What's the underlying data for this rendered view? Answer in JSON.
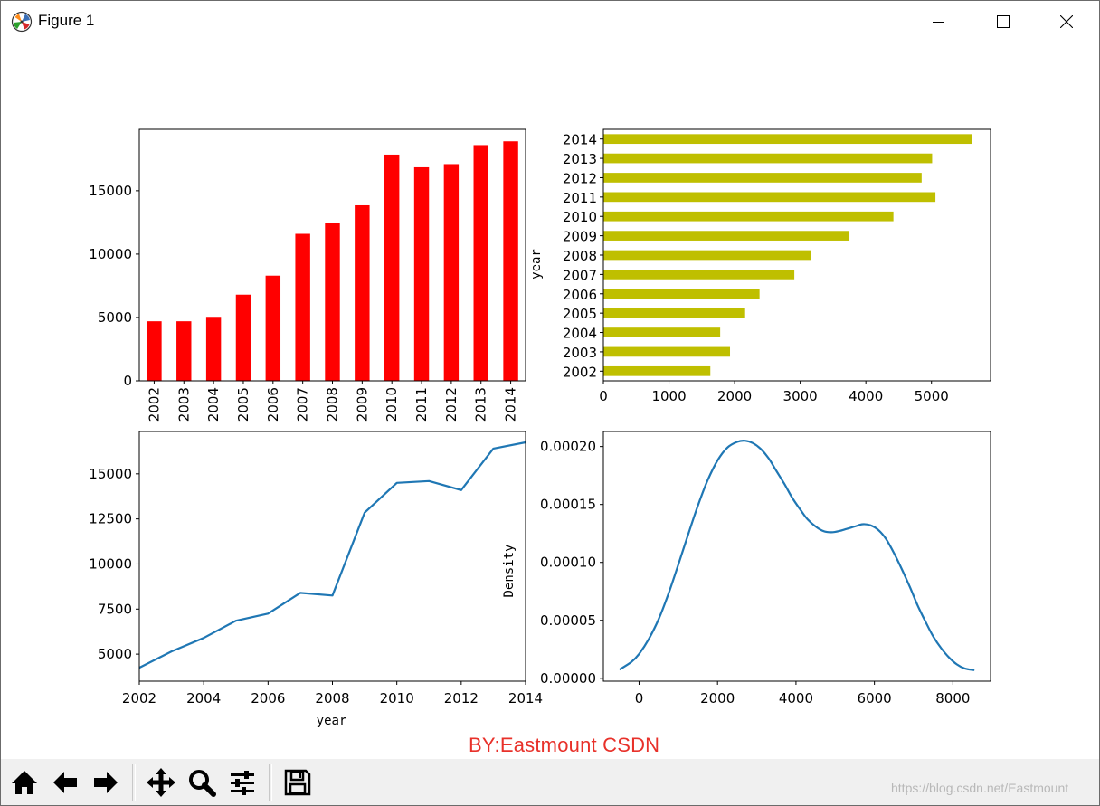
{
  "window": {
    "title": "Figure 1",
    "buttons": {
      "minimize": "minimize",
      "maximize": "maximize",
      "close": "close"
    }
  },
  "watermark": {
    "main": "BY:Eastmount CSDN",
    "url": "https://blog.csdn.net/Eastmount"
  },
  "toolbar": {
    "icons": [
      "home-icon",
      "back-arrow-icon",
      "forward-arrow-icon",
      "pan-icon",
      "zoom-icon",
      "configure-subplots-icon",
      "save-icon"
    ]
  },
  "colors": {
    "bar_red": "#ff0000",
    "bar_olive": "#bfbf00",
    "line_blue": "#1f77b4",
    "axis": "#000000"
  },
  "chart_data": [
    {
      "type": "bar",
      "categories": [
        "2002",
        "2003",
        "2004",
        "2005",
        "2006",
        "2007",
        "2008",
        "2009",
        "2010",
        "2011",
        "2012",
        "2013",
        "2014"
      ],
      "values": [
        4700,
        4700,
        5050,
        6800,
        8300,
        11600,
        12450,
        13850,
        17850,
        16850,
        17100,
        18600,
        18900
      ],
      "ylim": [
        0,
        19845
      ],
      "yticks": [
        0,
        5000,
        10000,
        15000
      ],
      "ytick_labels": [
        "0",
        "5000",
        "10000",
        "15000"
      ],
      "xlabel": "",
      "ylabel": "",
      "title": ""
    },
    {
      "type": "bar",
      "orientation": "horizontal",
      "categories": [
        "2002",
        "2003",
        "2004",
        "2005",
        "2006",
        "2007",
        "2008",
        "2009",
        "2010",
        "2011",
        "2012",
        "2013",
        "2014"
      ],
      "values": [
        1630,
        1930,
        1780,
        2160,
        2380,
        2910,
        3160,
        3750,
        4420,
        5060,
        4850,
        5010,
        5620
      ],
      "xlim": [
        0,
        5900
      ],
      "xticks": [
        0,
        1000,
        2000,
        3000,
        4000,
        5000
      ],
      "xtick_labels": [
        "0",
        "1000",
        "2000",
        "3000",
        "4000",
        "5000"
      ],
      "ylabel": "year",
      "xlabel": "",
      "title": ""
    },
    {
      "type": "line",
      "x": [
        2002,
        2003,
        2004,
        2005,
        2006,
        2007,
        2008,
        2009,
        2010,
        2011,
        2012,
        2013,
        2014
      ],
      "y": [
        4250,
        5150,
        5900,
        6850,
        7250,
        8400,
        8250,
        12850,
        14500,
        14600,
        14100,
        16400,
        16750
      ],
      "xlim": [
        2002,
        2014
      ],
      "ylim": [
        3500,
        17350
      ],
      "xticks": [
        2002,
        2004,
        2006,
        2008,
        2010,
        2012,
        2014
      ],
      "xtick_labels": [
        "2002",
        "2004",
        "2006",
        "2008",
        "2010",
        "2012",
        "2014"
      ],
      "yticks": [
        5000,
        7500,
        10000,
        12500,
        15000
      ],
      "ytick_labels": [
        "5000",
        "7500",
        "10000",
        "12500",
        "15000"
      ],
      "xlabel": "year",
      "ylabel": "",
      "title": ""
    },
    {
      "type": "line",
      "kind": "density",
      "x": [
        -500,
        -200,
        0,
        250,
        500,
        750,
        1000,
        1250,
        1500,
        1750,
        2000,
        2250,
        2500,
        2700,
        2900,
        3100,
        3300,
        3500,
        3700,
        3900,
        4100,
        4300,
        4500,
        4700,
        4900,
        5100,
        5300,
        5500,
        5700,
        5900,
        6100,
        6300,
        6500,
        6700,
        6900,
        7100,
        7300,
        7500,
        7700,
        7900,
        8100,
        8300,
        8550
      ],
      "y": [
        7.5e-06,
        1.4e-05,
        2.1e-05,
        3.4e-05,
        5.1e-05,
        7.3e-05,
        9.8e-05,
        0.000124,
        0.000149,
        0.000171,
        0.000188,
        0.000199,
        0.000204,
        0.000205,
        0.000203,
        0.000198,
        0.00019,
        0.000179,
        0.000168,
        0.000156,
        0.000146,
        0.000137,
        0.000131,
        0.000127,
        0.000126,
        0.000127,
        0.000129,
        0.000131,
        0.000133,
        0.000132,
        0.000128,
        0.00012,
        0.000108,
        9.4e-05,
        7.9e-05,
        6.3e-05,
        4.9e-05,
        3.6e-05,
        2.6e-05,
        1.8e-05,
        1.2e-05,
        8.5e-06,
        7e-06
      ],
      "xlim": [
        -910,
        8960
      ],
      "ylim": [
        -2.5e-06,
        0.000213
      ],
      "xticks": [
        0,
        2000,
        4000,
        6000,
        8000
      ],
      "xtick_labels": [
        "0",
        "2000",
        "4000",
        "6000",
        "8000"
      ],
      "yticks": [
        0,
        5e-05,
        0.0001,
        0.00015,
        0.0002
      ],
      "ytick_labels": [
        "0.00000",
        "0.00005",
        "0.00010",
        "0.00015",
        "0.00020"
      ],
      "xlabel": "",
      "ylabel": "Density",
      "title": ""
    }
  ]
}
